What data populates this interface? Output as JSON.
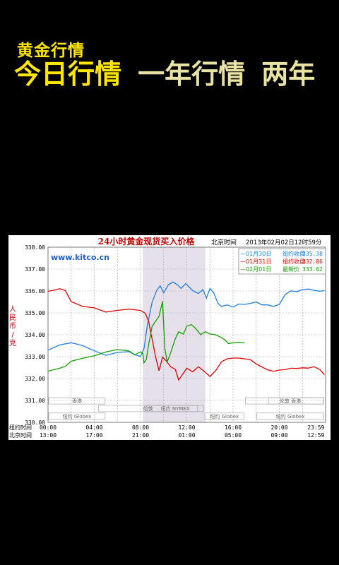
{
  "app_title": "黄金行情",
  "tabs": [
    {
      "label": "今日行情",
      "active": true
    },
    {
      "label": "一年行情",
      "active": false
    },
    {
      "label": "两年",
      "active": false
    }
  ],
  "colors": {
    "accent": "#ffe600",
    "inactive_tab": "#e9e3a3",
    "background": "#000000"
  },
  "chart_data": {
    "type": "line",
    "title": "24小时黄金现货买入价格",
    "time_label": "北京时间",
    "timestamp": "2013年02月02日12时59分",
    "watermark": "www.kitco.cn",
    "ylabel": "人民币/克",
    "ylim": [
      330,
      338
    ],
    "y_ticks": [
      "338.00",
      "337.00",
      "336.00",
      "335.00",
      "334.00",
      "333.00",
      "332.00",
      "331.00",
      "330.00"
    ],
    "x_rows": [
      {
        "label": "纽约时间",
        "ticks": [
          "00:00",
          "04:00",
          "08:00",
          "12:00",
          "16:00",
          "20:00",
          "23:59"
        ]
      },
      {
        "label": "北京时间",
        "ticks": [
          "13:00",
          "17:00",
          "21:00",
          "01:00",
          "05:00",
          "09:00",
          "12:59"
        ]
      }
    ],
    "highlight_hours": [
      8.2,
      13.6
    ],
    "legend": [
      {
        "date": "01月30日",
        "label": "纽约收盘",
        "value": "335.38",
        "color": "#1f7fe0"
      },
      {
        "date": "01月31日",
        "label": "纽约收盘",
        "value": "332.86",
        "color": "#e00000"
      },
      {
        "date": "02月01日",
        "label": "最新价",
        "value": "333.62",
        "color": "#13a000"
      }
    ],
    "sessions": [
      {
        "label": "香港",
        "x1": 0,
        "x2": 5
      },
      {
        "label": "纽约 Globex",
        "x1": 0,
        "x2": 5
      },
      {
        "label": "伦敦",
        "x1": 4.3,
        "x2": 13
      },
      {
        "label": "纽约 NYMEX",
        "x1": 8.5,
        "x2": 13.5
      },
      {
        "label": "纽约 Globex",
        "x1": 13.5,
        "x2": 17
      },
      {
        "label": "伦敦",
        "x1": 17,
        "x2": 23.9
      },
      {
        "label": "香港",
        "x1": 19,
        "x2": 23.9
      },
      {
        "label": "纽约 Globex",
        "x1": 18,
        "x2": 23.9
      }
    ],
    "series": [
      {
        "name": "01月30日",
        "color": "#1f7fe0",
        "points": [
          [
            0,
            333.3
          ],
          [
            1,
            333.5
          ],
          [
            2,
            333.6
          ],
          [
            3,
            333.5
          ],
          [
            4,
            333.3
          ],
          [
            5,
            333.1
          ],
          [
            6,
            333.2
          ],
          [
            7,
            333.2
          ],
          [
            7.5,
            333.05
          ],
          [
            8,
            333.0
          ],
          [
            8.3,
            333.4
          ],
          [
            8.6,
            334.5
          ],
          [
            9,
            335.5
          ],
          [
            9.4,
            336.0
          ],
          [
            9.7,
            336.2
          ],
          [
            10,
            335.9
          ],
          [
            10.4,
            336.3
          ],
          [
            10.8,
            336.45
          ],
          [
            11.2,
            336.3
          ],
          [
            11.5,
            336.1
          ],
          [
            11.9,
            336.3
          ],
          [
            12.5,
            336.0
          ],
          [
            13,
            335.9
          ],
          [
            13.4,
            336.1
          ],
          [
            13.7,
            335.7
          ],
          [
            14,
            336.1
          ],
          [
            14.3,
            335.9
          ],
          [
            14.7,
            335.4
          ],
          [
            15,
            335.3
          ],
          [
            15.5,
            335.4
          ],
          [
            16,
            335.3
          ],
          [
            16.5,
            335.4
          ],
          [
            17,
            335.35
          ],
          [
            17.5,
            335.4
          ],
          [
            18,
            335.5
          ],
          [
            18.5,
            335.4
          ],
          [
            19,
            335.4
          ],
          [
            19.5,
            335.3
          ],
          [
            20,
            335.35
          ],
          [
            20.5,
            335.8
          ],
          [
            21,
            336.0
          ],
          [
            21.5,
            336.0
          ],
          [
            22,
            336.1
          ],
          [
            22.5,
            336.1
          ],
          [
            23,
            336.0
          ],
          [
            23.5,
            335.95
          ],
          [
            23.9,
            336.0
          ]
        ]
      },
      {
        "name": "01月31日",
        "color": "#e00000",
        "points": [
          [
            0,
            335.95
          ],
          [
            0.5,
            336.0
          ],
          [
            1,
            336.1
          ],
          [
            1.5,
            336.05
          ],
          [
            2,
            335.55
          ],
          [
            3,
            335.3
          ],
          [
            4,
            335.2
          ],
          [
            5,
            335.0
          ],
          [
            6,
            335.1
          ],
          [
            7,
            335.2
          ],
          [
            8,
            335.15
          ],
          [
            8.4,
            335.0
          ],
          [
            8.7,
            334.6
          ],
          [
            8.9,
            334.0
          ],
          [
            9,
            333.8
          ],
          [
            9.3,
            333.0
          ],
          [
            9.6,
            332.4
          ],
          [
            9.9,
            333.0
          ],
          [
            10.2,
            332.8
          ],
          [
            10.6,
            332.5
          ],
          [
            11,
            332.4
          ],
          [
            11.3,
            331.95
          ],
          [
            11.6,
            332.2
          ],
          [
            12,
            332.5
          ],
          [
            12.5,
            332.3
          ],
          [
            13,
            332.5
          ],
          [
            13.5,
            332.3
          ],
          [
            14,
            332.1
          ],
          [
            14.5,
            332.4
          ],
          [
            15,
            332.8
          ],
          [
            15.5,
            332.9
          ],
          [
            16,
            332.9
          ],
          [
            16.5,
            332.9
          ],
          [
            17,
            332.9
          ],
          [
            17.5,
            332.9
          ],
          [
            18,
            332.7
          ],
          [
            19,
            332.4
          ],
          [
            19.5,
            332.3
          ],
          [
            20,
            332.35
          ],
          [
            20.5,
            332.4
          ],
          [
            21,
            332.5
          ],
          [
            21.5,
            332.5
          ],
          [
            22,
            332.5
          ],
          [
            22.5,
            332.45
          ],
          [
            23,
            332.5
          ],
          [
            23.5,
            332.4
          ],
          [
            23.9,
            332.2
          ]
        ]
      },
      {
        "name": "02月01日",
        "color": "#13a000",
        "points": [
          [
            0,
            332.3
          ],
          [
            0.5,
            332.4
          ],
          [
            1,
            332.5
          ],
          [
            1.5,
            332.6
          ],
          [
            2,
            332.8
          ],
          [
            3,
            332.9
          ],
          [
            4,
            333.0
          ],
          [
            5,
            333.2
          ],
          [
            6,
            333.35
          ],
          [
            7,
            333.3
          ],
          [
            7.5,
            333.1
          ],
          [
            8,
            333.2
          ],
          [
            8.2,
            333.1
          ],
          [
            8.3,
            332.7
          ],
          [
            8.5,
            332.9
          ],
          [
            8.7,
            333.6
          ],
          [
            9,
            334.4
          ],
          [
            9.3,
            334.6
          ],
          [
            9.6,
            334.8
          ],
          [
            9.9,
            335.5
          ],
          [
            10.1,
            333.4
          ],
          [
            10.3,
            332.8
          ],
          [
            10.6,
            333.2
          ],
          [
            11,
            333.8
          ],
          [
            11.3,
            334.1
          ],
          [
            11.7,
            334.0
          ],
          [
            12,
            334.4
          ],
          [
            12.4,
            334.5
          ],
          [
            12.8,
            334.3
          ],
          [
            13.2,
            334.0
          ],
          [
            13.6,
            334.1
          ],
          [
            14,
            334.0
          ],
          [
            14.5,
            334.0
          ],
          [
            15,
            333.9
          ],
          [
            15.3,
            333.8
          ],
          [
            15.6,
            333.6
          ],
          [
            16,
            333.6
          ],
          [
            16.5,
            333.62
          ],
          [
            17,
            333.62
          ]
        ]
      }
    ]
  }
}
